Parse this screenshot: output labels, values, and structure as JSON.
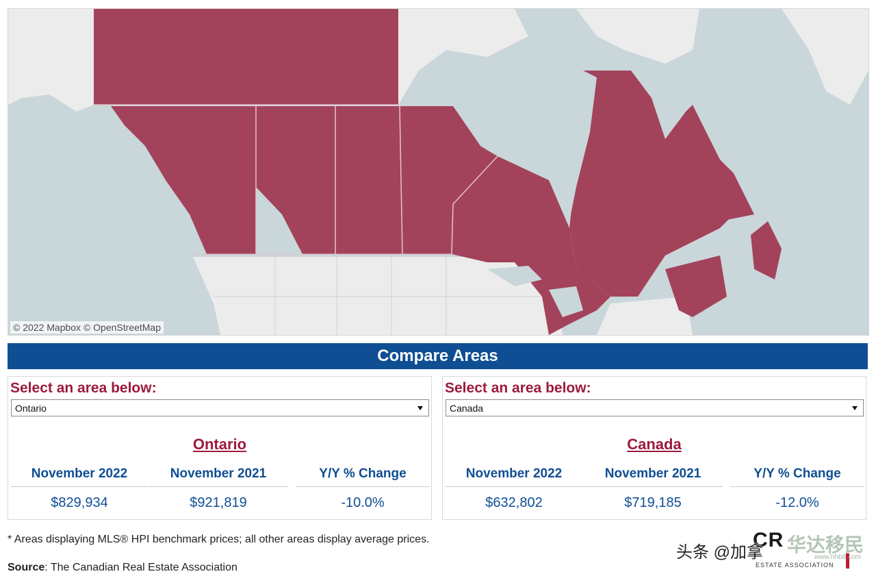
{
  "map": {
    "attribution": "© 2022 Mapbox  © OpenStreetMap",
    "highlight_color": "#a3435b",
    "water_color": "#c9d6da",
    "land_color": "#ececec"
  },
  "banner": {
    "title": "Compare Areas"
  },
  "left_panel": {
    "select_label": "Select an area below:",
    "dropdown_value": "Ontario",
    "area_title": "Ontario",
    "headers": [
      "November 2022",
      "November 2021",
      "Y/Y % Change"
    ],
    "values": [
      "$829,934",
      "$921,819",
      "-10.0%"
    ]
  },
  "right_panel": {
    "select_label": "Select an area below:",
    "dropdown_value": "Canada",
    "area_title": "Canada",
    "headers": [
      "November 2022",
      "November 2021",
      "Y/Y % Change"
    ],
    "values": [
      "$632,802",
      "$719,185",
      "-12.0%"
    ]
  },
  "footer": {
    "footnote": "* Areas displaying MLS® HPI benchmark prices; all other areas display average prices.",
    "source_label": "Source",
    "source_text": ": The Canadian Real Estate Association"
  },
  "logo": {
    "main": "CR",
    "sub": "ESTATE ASSOCIATION"
  },
  "watermark": {
    "text": "头条 @加拿",
    "brand": "华达移民",
    "site": "www.hhb8.com"
  },
  "colors": {
    "accent_red": "#9c1a3c",
    "accent_blue": "#0f4e93"
  }
}
